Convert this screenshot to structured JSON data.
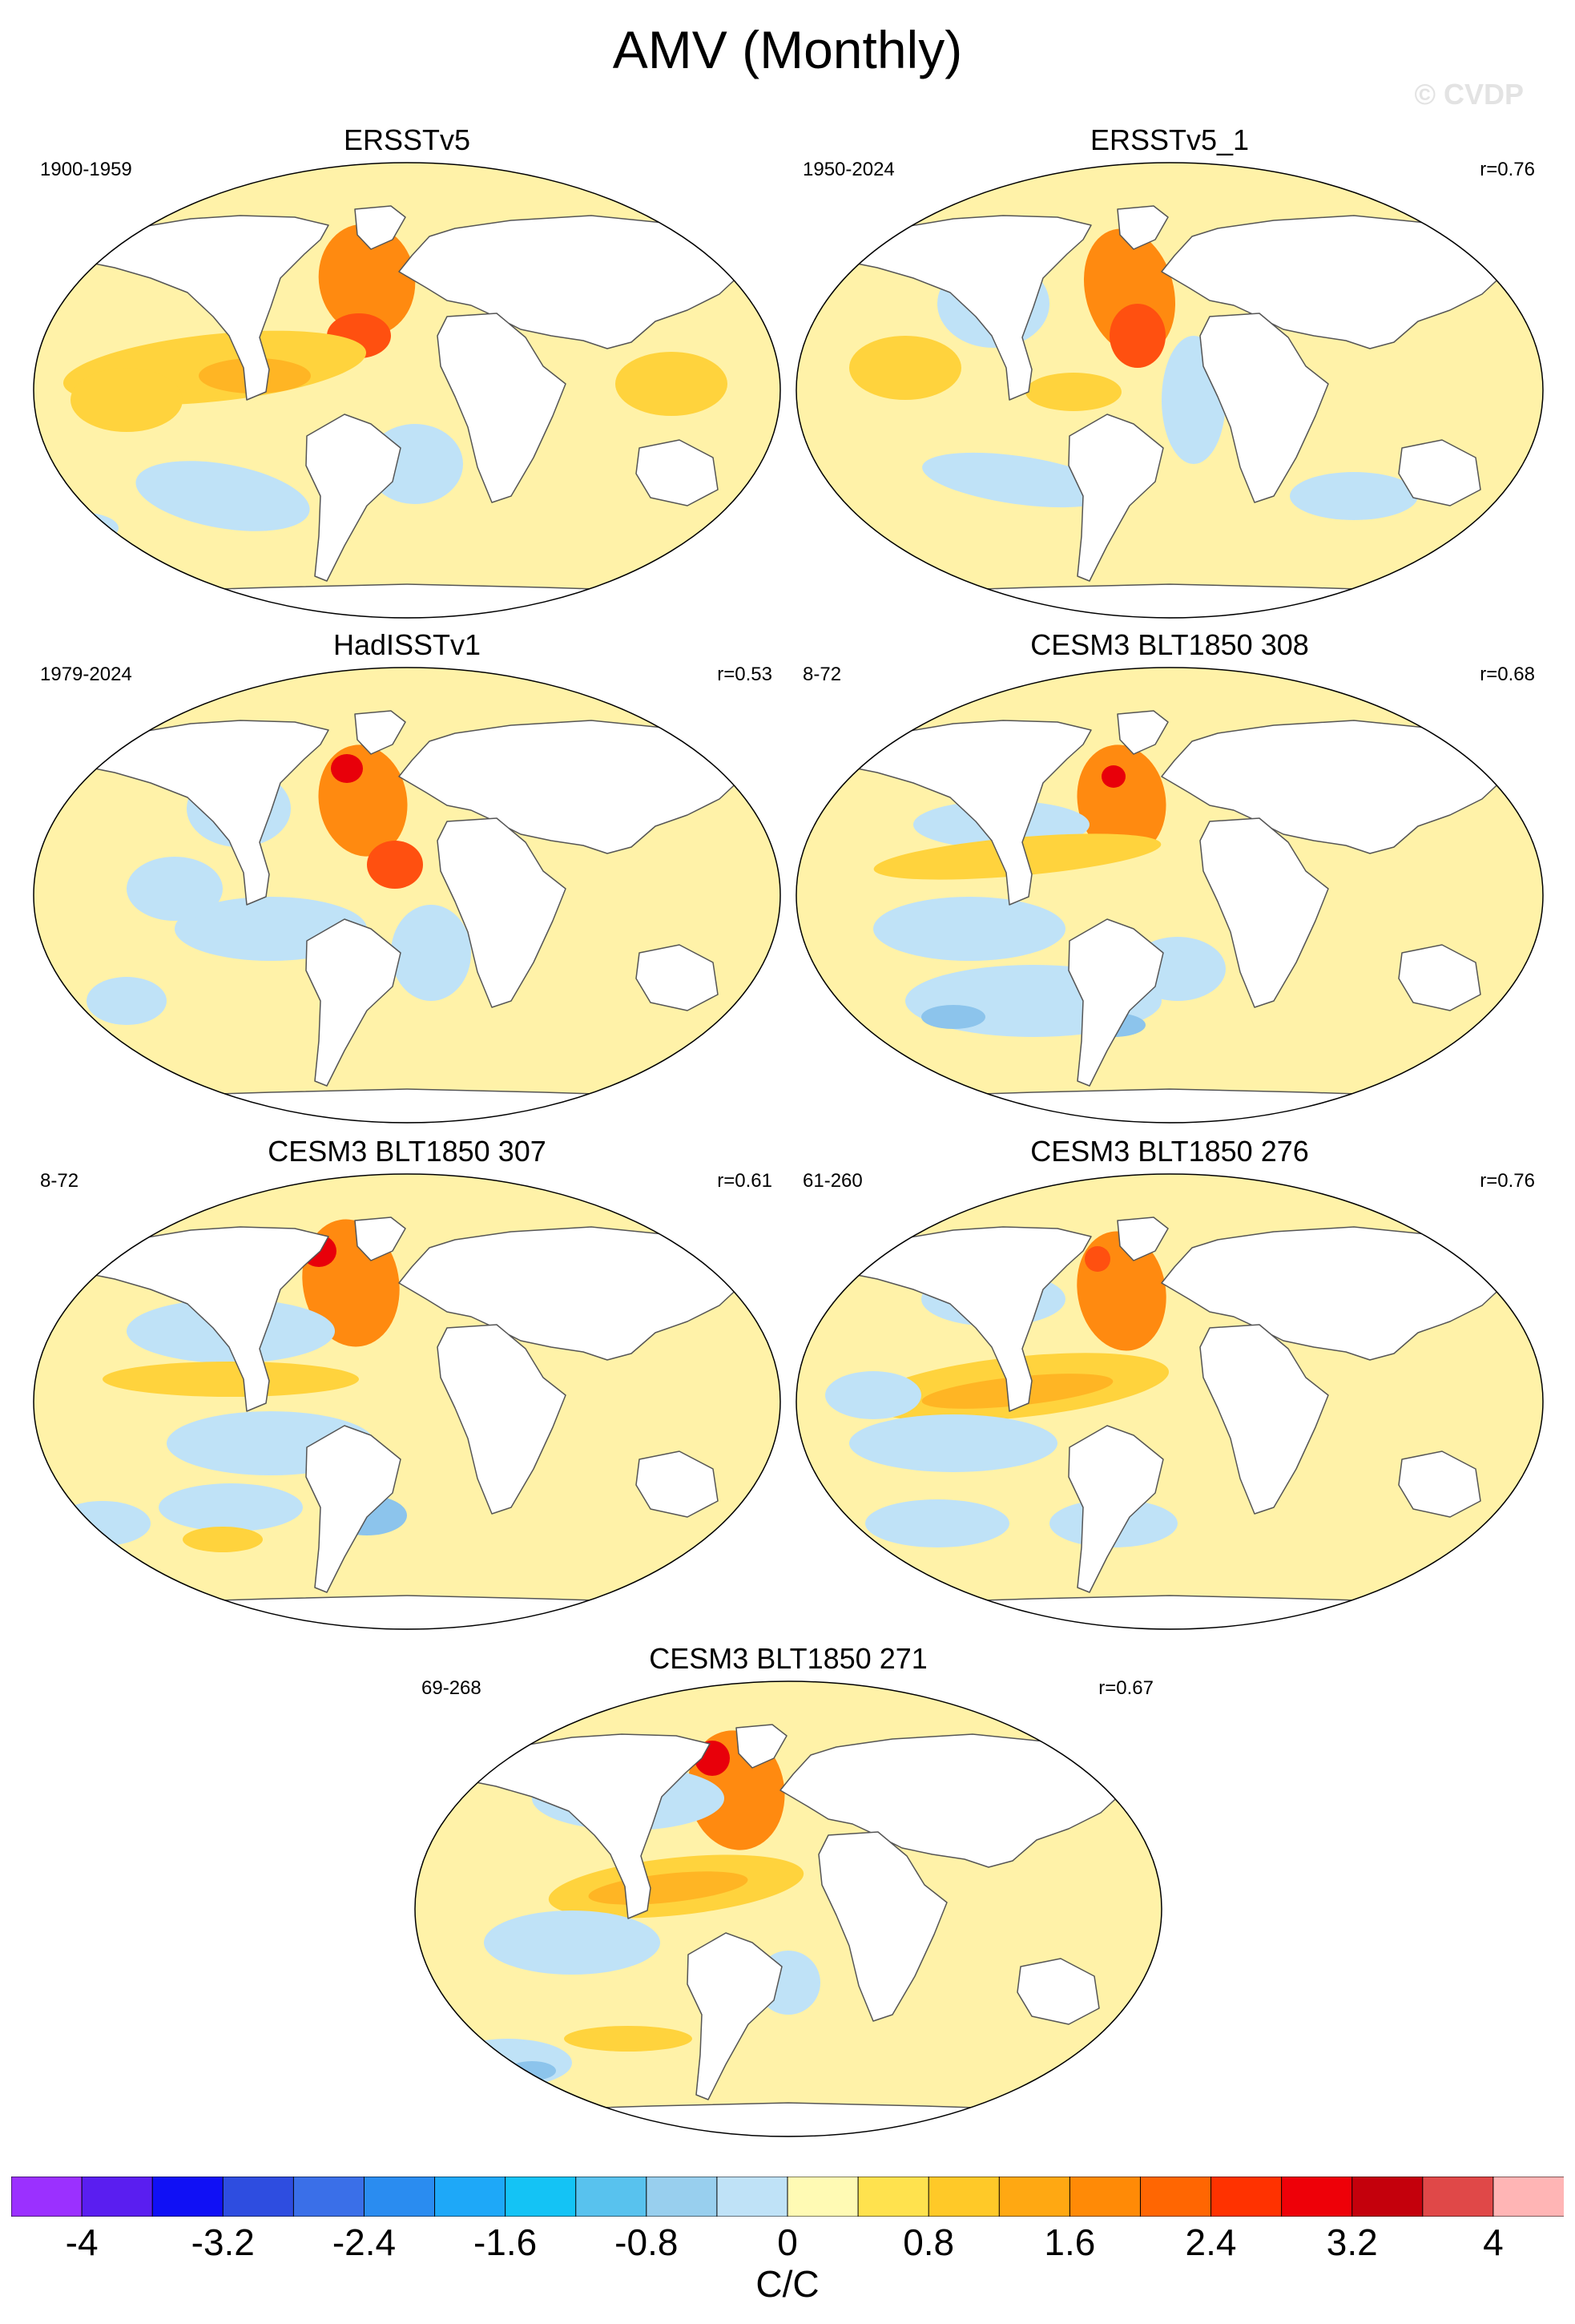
{
  "title": "AMV (Monthly)",
  "watermark": "© CVDP",
  "panels": [
    {
      "title": "ERSSTv5",
      "period": "1900-1959",
      "corr": ""
    },
    {
      "title": "ERSSTv5_1",
      "period": "1950-2024",
      "corr": "r=0.76"
    },
    {
      "title": "HadISSTv1",
      "period": "1979-2024",
      "corr": "r=0.53"
    },
    {
      "title": "CESM3 BLT1850 308",
      "period": "8-72",
      "corr": "r=0.68"
    },
    {
      "title": "CESM3 BLT1850 307",
      "period": "8-72",
      "corr": "r=0.61"
    },
    {
      "title": "CESM3 BLT1850 276",
      "period": "61-260",
      "corr": "r=0.76"
    },
    {
      "title": "CESM3 BLT1850 271",
      "period": "69-268",
      "corr": "r=0.67"
    }
  ],
  "colorbar": {
    "units": "C/C",
    "min": -4.4,
    "max": 4.4,
    "step": 0.4,
    "colors": [
      "#9b30ff",
      "#5a1ef0",
      "#1010f5",
      "#2e4de0",
      "#3a6fe8",
      "#2a8cf0",
      "#1ea8f8",
      "#14c3f5",
      "#58c2ee",
      "#98cfee",
      "#bfe2f7",
      "#fffab4",
      "#ffe24e",
      "#ffc928",
      "#ffa812",
      "#ff8a06",
      "#ff6602",
      "#ff3200",
      "#ee0008",
      "#c4000c",
      "#e04848",
      "#ffb5b5"
    ],
    "tick_labels": [
      "-4",
      "-3.2",
      "-2.4",
      "-1.6",
      "-0.8",
      "0",
      "0.8",
      "1.6",
      "2.4",
      "3.2",
      "4"
    ]
  },
  "map_colors": {
    "ocean": "#fff2a8",
    "ocean_warm": "#ffd33d",
    "warm": "#ffb524",
    "hot": "#ff8a10",
    "hotter": "#ff5010",
    "extreme": "#e8000a",
    "cool": "#bfe2f7",
    "cold": "#8cc4ec",
    "colder": "#3a8ff0",
    "land": "#ffffff",
    "coast": "#555555"
  }
}
